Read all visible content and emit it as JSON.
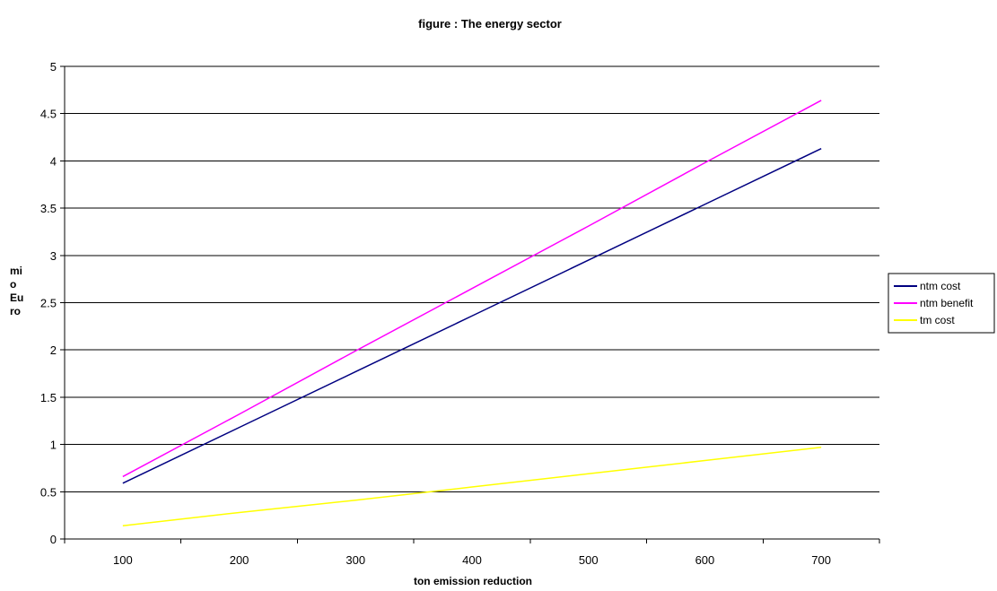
{
  "chart_data": {
    "type": "line",
    "title": "figure : The energy sector",
    "xlabel": "ton emission reduction",
    "ylabel_lines": [
      "mi",
      "o",
      "Eu",
      "ro"
    ],
    "categories": [
      "100",
      "200",
      "300",
      "400",
      "500",
      "600",
      "700"
    ],
    "x": [
      100,
      200,
      300,
      400,
      500,
      600,
      700
    ],
    "yticks": [
      "0",
      "0.5",
      "1",
      "1.5",
      "2",
      "2.5",
      "3",
      "3.5",
      "4",
      "4.5",
      "5"
    ],
    "ylim": [
      0,
      5
    ],
    "grid": true,
    "legend_position": "right",
    "series": [
      {
        "name": "ntm cost",
        "color": "#000080",
        "values": [
          0.59,
          1.18,
          1.77,
          2.36,
          2.95,
          3.54,
          4.13
        ]
      },
      {
        "name": "ntm benefit",
        "color": "#ff00ff",
        "values": [
          0.66,
          1.32,
          1.99,
          2.65,
          3.31,
          3.98,
          4.64
        ]
      },
      {
        "name": "tm cost",
        "color": "#ffff00",
        "values": [
          0.14,
          0.28,
          0.41,
          0.55,
          0.69,
          0.83,
          0.97
        ]
      }
    ]
  }
}
